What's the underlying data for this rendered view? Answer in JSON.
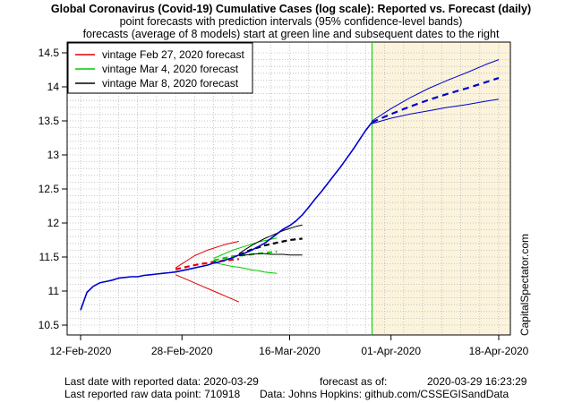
{
  "chart_data": {
    "type": "line",
    "title": "Global Coronavirus (Covid-19) Cumulative Cases (log scale): Reported vs. Forecast (daily)",
    "subtitle": "point forecasts with prediction intervals (95% confidence-level bands)",
    "subtitle2": "forecasts (average of 8 models) start at green line and subsequent dates to the right",
    "xlabel": "",
    "ylabel": "",
    "x_ticks": [
      "12-Feb-2020",
      "28-Feb-2020",
      "16-Mar-2020",
      "01-Apr-2020",
      "18-Apr-2020"
    ],
    "y_ticks": [
      10.5,
      11,
      11.5,
      12,
      12.5,
      13,
      13.5,
      14,
      14.5
    ],
    "xlim": [
      "2020-02-12",
      "2020-04-18"
    ],
    "ylim": [
      10.5,
      14.5
    ],
    "grid": true,
    "legend_position": "top-left",
    "forecast_start": "2020-03-29",
    "forecast_band_color": "#fbf3dc",
    "reported": {
      "color": "#0000cc",
      "x": [
        "2020-02-12",
        "2020-02-13",
        "2020-02-14",
        "2020-02-15",
        "2020-02-16",
        "2020-02-17",
        "2020-02-18",
        "2020-02-19",
        "2020-02-20",
        "2020-02-21",
        "2020-02-22",
        "2020-02-23",
        "2020-02-24",
        "2020-02-25",
        "2020-02-26",
        "2020-02-27",
        "2020-02-28",
        "2020-02-29",
        "2020-03-01",
        "2020-03-02",
        "2020-03-03",
        "2020-03-04",
        "2020-03-05",
        "2020-03-06",
        "2020-03-07",
        "2020-03-08",
        "2020-03-09",
        "2020-03-10",
        "2020-03-11",
        "2020-03-12",
        "2020-03-13",
        "2020-03-14",
        "2020-03-15",
        "2020-03-16",
        "2020-03-17",
        "2020-03-18",
        "2020-03-19",
        "2020-03-20",
        "2020-03-21",
        "2020-03-22",
        "2020-03-23",
        "2020-03-24",
        "2020-03-25",
        "2020-03-26",
        "2020-03-27",
        "2020-03-28",
        "2020-03-29"
      ],
      "y": [
        10.72,
        10.98,
        11.07,
        11.12,
        11.14,
        11.16,
        11.19,
        11.2,
        11.21,
        11.21,
        11.23,
        11.24,
        11.25,
        11.26,
        11.27,
        11.28,
        11.3,
        11.32,
        11.34,
        11.36,
        11.38,
        11.41,
        11.43,
        11.46,
        11.49,
        11.53,
        11.56,
        11.6,
        11.65,
        11.7,
        11.77,
        11.84,
        11.91,
        11.96,
        12.03,
        12.12,
        12.23,
        12.35,
        12.46,
        12.58,
        12.7,
        12.82,
        12.95,
        13.08,
        13.22,
        13.36,
        13.48
      ]
    },
    "series": [
      {
        "name": "vintage Feb 27, 2020 forecast",
        "color": "#e00000",
        "x": [
          "2020-02-27",
          "2020-02-28",
          "2020-02-29",
          "2020-03-01",
          "2020-03-02",
          "2020-03-03",
          "2020-03-04",
          "2020-03-05",
          "2020-03-06",
          "2020-03-07",
          "2020-03-08"
        ],
        "point": [
          11.32,
          11.34,
          11.36,
          11.38,
          11.4,
          11.41,
          11.43,
          11.44,
          11.45,
          11.46,
          11.47
        ],
        "upper": [
          11.34,
          11.4,
          11.46,
          11.52,
          11.56,
          11.6,
          11.63,
          11.66,
          11.69,
          11.71,
          11.73
        ],
        "lower": [
          11.24,
          11.2,
          11.16,
          11.12,
          11.08,
          11.04,
          11.0,
          10.96,
          10.92,
          10.88,
          10.84
        ]
      },
      {
        "name": "vintage Mar 4, 2020 forecast",
        "color": "#00cc00",
        "x": [
          "2020-03-04",
          "2020-03-05",
          "2020-03-06",
          "2020-03-07",
          "2020-03-08",
          "2020-03-09",
          "2020-03-10",
          "2020-03-11",
          "2020-03-12",
          "2020-03-13",
          "2020-03-14"
        ],
        "point": [
          11.45,
          11.47,
          11.49,
          11.51,
          11.52,
          11.53,
          11.54,
          11.55,
          11.56,
          11.57,
          11.58
        ],
        "upper": [
          11.48,
          11.52,
          11.56,
          11.6,
          11.63,
          11.66,
          11.69,
          11.72,
          11.74,
          11.76,
          11.78
        ],
        "lower": [
          11.42,
          11.4,
          11.38,
          11.36,
          11.35,
          11.33,
          11.31,
          11.3,
          11.28,
          11.27,
          11.26
        ]
      },
      {
        "name": "vintage Mar 8, 2020 forecast",
        "color": "#000000",
        "x": [
          "2020-03-08",
          "2020-03-09",
          "2020-03-10",
          "2020-03-11",
          "2020-03-12",
          "2020-03-13",
          "2020-03-14",
          "2020-03-15",
          "2020-03-16",
          "2020-03-17",
          "2020-03-18"
        ],
        "point": [
          11.53,
          11.57,
          11.61,
          11.64,
          11.67,
          11.69,
          11.71,
          11.73,
          11.75,
          11.76,
          11.77
        ],
        "upper": [
          11.55,
          11.61,
          11.67,
          11.72,
          11.77,
          11.81,
          11.85,
          11.89,
          11.92,
          11.95,
          11.97
        ],
        "lower": [
          11.52,
          11.53,
          11.54,
          11.55,
          11.55,
          11.54,
          11.54,
          11.54,
          11.53,
          11.53,
          11.53
        ]
      }
    ],
    "current_forecast": {
      "color": "#0000cc",
      "x": [
        "2020-03-29",
        "2020-04-01",
        "2020-04-04",
        "2020-04-07",
        "2020-04-10",
        "2020-04-13",
        "2020-04-16",
        "2020-04-18"
      ],
      "point": [
        13.48,
        13.6,
        13.71,
        13.81,
        13.9,
        13.98,
        14.07,
        14.13
      ],
      "upper": [
        13.5,
        13.68,
        13.84,
        13.98,
        14.1,
        14.21,
        14.33,
        14.4
      ],
      "lower": [
        13.46,
        13.54,
        13.6,
        13.65,
        13.7,
        13.74,
        13.79,
        13.82
      ]
    }
  },
  "footer": {
    "last_date_label": "Last date with reported data:  2020-03-29",
    "last_point_label": "Last reported raw data point:  710918",
    "forecast_as_of_label": "forecast as of:",
    "forecast_as_of_value": "2020-03-29 16:23:29",
    "data_source": "Data: Johns Hopkins: github.com/CSSEGISandData"
  },
  "watermark": "CapitalSpectator.com"
}
